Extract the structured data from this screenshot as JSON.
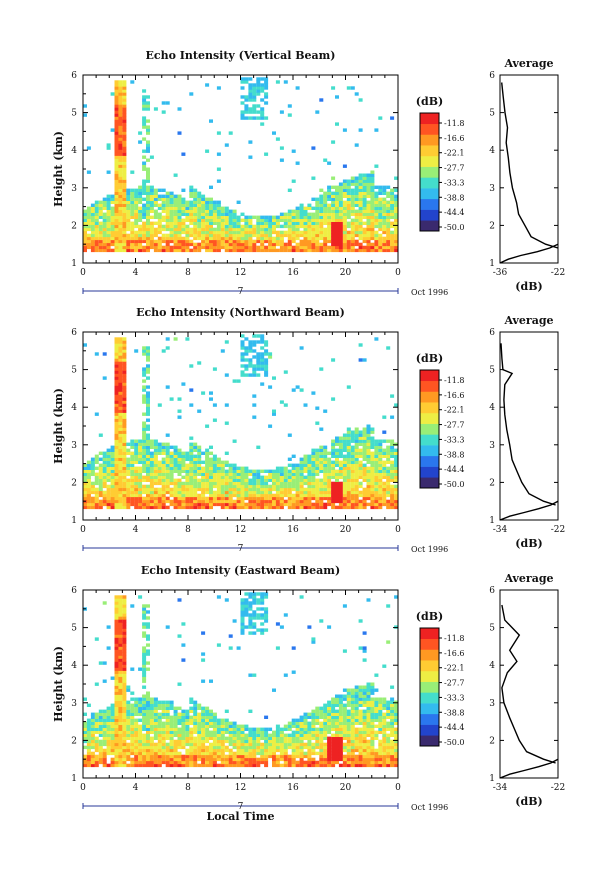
{
  "chart_data": [
    {
      "type": "heatmap",
      "title": "Echo Intensity (Vertical Beam)",
      "ylabel": "Height (km)",
      "xlabel": "",
      "x_ticks": [
        "0",
        "4",
        "8",
        "12",
        "16",
        "20",
        "0"
      ],
      "y_ticks": [
        "1",
        "2",
        "3",
        "4",
        "5",
        "6"
      ],
      "xlim": [
        0,
        24
      ],
      "ylim": [
        1,
        6
      ],
      "date_day": "7",
      "date_month": "Oct 1996",
      "colorbar_unit": "(dB)",
      "colorbar_ticks": [
        "-11.8",
        "-16.6",
        "-22.1",
        "-27.7",
        "-33.3",
        "-38.8",
        "-44.4",
        "-50.0"
      ],
      "colorbar_range": [
        -50.0,
        -11.0
      ],
      "features": [
        {
          "name": "boundary layer",
          "height_range_km": [
            1.3,
            2.4
          ],
          "time_range_h": [
            0,
            24
          ],
          "level_db": -27
        },
        {
          "name": "strong echo",
          "height_range_km": [
            1.4,
            2.1
          ],
          "time_range_h": [
            18.8,
            19.6
          ],
          "level_db": -11.8
        },
        {
          "name": "vertical column",
          "height_range_km": [
            1.4,
            5.8
          ],
          "time_range_h": [
            2.4,
            3.2
          ],
          "level_db": -22
        },
        {
          "name": "upper cloud",
          "height_range_km": [
            4.8,
            5.9
          ],
          "time_range_h": [
            12,
            14
          ],
          "level_db": -36
        }
      ],
      "profile": {
        "title": "Average",
        "xlabel": "(dB)",
        "x_ticks": [
          "-36",
          "-22"
        ],
        "xlim": [
          -36,
          -22
        ],
        "y_ticks": [
          "1",
          "2",
          "3",
          "4",
          "5",
          "6"
        ],
        "height_km": [
          1.4,
          1.5,
          1.7,
          2.0,
          2.3,
          2.6,
          3.0,
          3.4,
          3.8,
          4.2,
          4.6,
          5.0,
          5.4,
          5.8
        ],
        "mean_db": [
          -22,
          -25,
          -28.5,
          -30,
          -31.5,
          -32,
          -33,
          -33.6,
          -34,
          -34.5,
          -34.2,
          -34.8,
          -35.2,
          -35.6
        ],
        "lower_curve_db": [
          -36,
          -34,
          -31,
          -27,
          -24,
          -22
        ],
        "lower_curve_km": [
          1.0,
          1.1,
          1.2,
          1.3,
          1.4,
          1.5
        ]
      }
    },
    {
      "type": "heatmap",
      "title": "Echo Intensity (Northward Beam)",
      "ylabel": "Height (km)",
      "xlabel": "",
      "x_ticks": [
        "0",
        "4",
        "8",
        "12",
        "16",
        "20",
        "0"
      ],
      "y_ticks": [
        "1",
        "2",
        "3",
        "4",
        "5",
        "6"
      ],
      "xlim": [
        0,
        24
      ],
      "ylim": [
        1,
        6
      ],
      "date_day": "7",
      "date_month": "Oct 1996",
      "colorbar_unit": "(dB)",
      "colorbar_ticks": [
        "-11.8",
        "-16.6",
        "-22.1",
        "-27.7",
        "-33.3",
        "-38.8",
        "-44.4",
        "-50.0"
      ],
      "colorbar_range": [
        -50.0,
        -11.0
      ],
      "features": [
        {
          "name": "boundary layer",
          "height_range_km": [
            1.3,
            2.5
          ],
          "time_range_h": [
            0,
            24
          ],
          "level_db": -27
        },
        {
          "name": "strong echo",
          "height_range_km": [
            1.4,
            2.0
          ],
          "time_range_h": [
            18.8,
            19.6
          ],
          "level_db": -11.8
        },
        {
          "name": "vertical column",
          "height_range_km": [
            1.4,
            5.8
          ],
          "time_range_h": [
            2.4,
            3.2
          ],
          "level_db": -22
        },
        {
          "name": "upper cloud",
          "height_range_km": [
            4.8,
            5.9
          ],
          "time_range_h": [
            12,
            14
          ],
          "level_db": -36
        }
      ],
      "profile": {
        "title": "Average",
        "xlabel": "(dB)",
        "x_ticks": [
          "-34",
          "-22"
        ],
        "xlim": [
          -34,
          -22
        ],
        "y_ticks": [
          "1",
          "2",
          "3",
          "4",
          "5",
          "6"
        ],
        "height_km": [
          1.4,
          1.5,
          1.7,
          2.0,
          2.3,
          2.6,
          3.0,
          3.4,
          3.8,
          4.2,
          4.6,
          4.9,
          5.0,
          5.3,
          5.7
        ],
        "mean_db": [
          -22.5,
          -25,
          -28,
          -29.5,
          -30.5,
          -31.5,
          -32,
          -32.6,
          -33,
          -33.2,
          -33,
          -31.5,
          -33.4,
          -33.6,
          -33.8
        ],
        "lower_curve_db": [
          -34,
          -32,
          -29,
          -26,
          -23.5,
          -22
        ],
        "lower_curve_km": [
          1.0,
          1.1,
          1.2,
          1.3,
          1.4,
          1.5
        ]
      }
    },
    {
      "type": "heatmap",
      "title": "Echo Intensity (Eastward Beam)",
      "ylabel": "Height (km)",
      "xlabel": "Local Time",
      "x_ticks": [
        "0",
        "4",
        "8",
        "12",
        "16",
        "20",
        "0"
      ],
      "y_ticks": [
        "1",
        "2",
        "3",
        "4",
        "5",
        "6"
      ],
      "xlim": [
        0,
        24
      ],
      "ylim": [
        1,
        6
      ],
      "date_day": "7",
      "date_month": "Oct 1996",
      "colorbar_unit": "(dB)",
      "colorbar_ticks": [
        "-11.8",
        "-16.6",
        "-22.1",
        "-27.7",
        "-33.3",
        "-38.8",
        "-44.4",
        "-50.0"
      ],
      "colorbar_range": [
        -50.0,
        -11.0
      ],
      "features": [
        {
          "name": "boundary layer",
          "height_range_km": [
            1.3,
            2.5
          ],
          "time_range_h": [
            0,
            24
          ],
          "level_db": -27
        },
        {
          "name": "strong echo",
          "height_range_km": [
            1.4,
            2.1
          ],
          "time_range_h": [
            18.6,
            19.6
          ],
          "level_db": -11.8
        },
        {
          "name": "vertical column",
          "height_range_km": [
            1.4,
            5.8
          ],
          "time_range_h": [
            2.4,
            3.2
          ],
          "level_db": -22
        },
        {
          "name": "upper cloud",
          "height_range_km": [
            4.8,
            5.9
          ],
          "time_range_h": [
            12,
            14
          ],
          "level_db": -36
        }
      ],
      "profile": {
        "title": "Average",
        "xlabel": "(dB)",
        "x_ticks": [
          "-34",
          "-22"
        ],
        "xlim": [
          -34,
          -22
        ],
        "y_ticks": [
          "1",
          "2",
          "3",
          "4",
          "5",
          "6"
        ],
        "height_km": [
          1.4,
          1.5,
          1.7,
          2.0,
          2.3,
          2.6,
          3.0,
          3.4,
          3.8,
          4.1,
          4.4,
          4.8,
          5.2,
          5.6
        ],
        "mean_db": [
          -22.5,
          -25,
          -28.5,
          -30,
          -31,
          -32,
          -33.2,
          -33.6,
          -32.5,
          -30.5,
          -32,
          -30,
          -33,
          -33.6
        ],
        "lower_curve_db": [
          -34,
          -32,
          -29,
          -26,
          -23.5,
          -22
        ],
        "lower_curve_km": [
          1.0,
          1.1,
          1.2,
          1.3,
          1.4,
          1.5
        ]
      }
    }
  ],
  "colors": {
    "scale": [
      "#3a2a6e",
      "#2244cc",
      "#2a77ee",
      "#33bbee",
      "#44ddcc",
      "#99ee77",
      "#eeee44",
      "#ffcc33",
      "#ff9922",
      "#ff5522",
      "#ee2222"
    ]
  }
}
